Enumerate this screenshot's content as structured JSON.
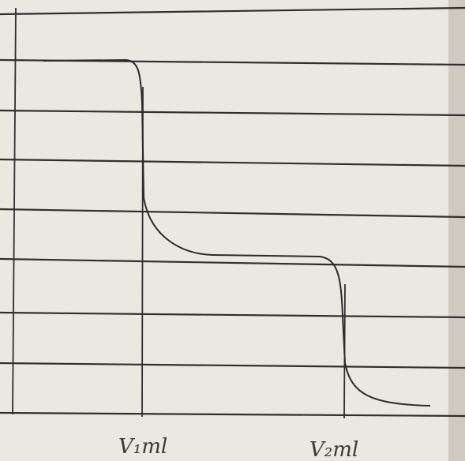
{
  "labels": {
    "v1": "V₁ml",
    "v2": "V₂ml"
  }
}
